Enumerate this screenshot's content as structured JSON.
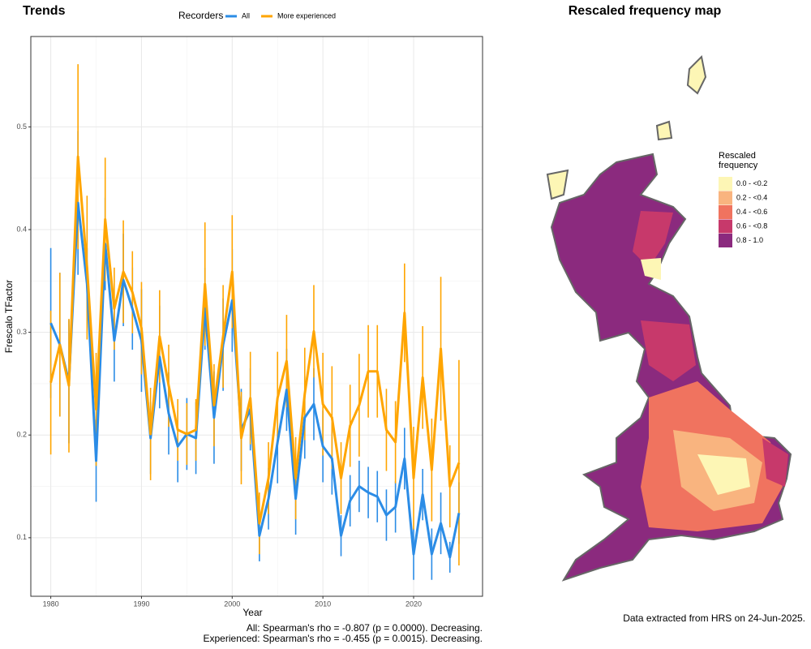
{
  "chart_data": [
    {
      "type": "line",
      "title": "Trends",
      "y_label": "Frescalo TFactor",
      "x_label": "Year",
      "legend_title": "Recorders",
      "x": [
        1980,
        1981,
        1982,
        1983,
        1984,
        1985,
        1986,
        1987,
        1988,
        1989,
        1990,
        1991,
        1992,
        1993,
        1994,
        1995,
        1996,
        1997,
        1998,
        1999,
        2000,
        2001,
        2002,
        2003,
        2004,
        2005,
        2006,
        2007,
        2008,
        2009,
        2010,
        2011,
        2012,
        2013,
        2014,
        2015,
        2016,
        2017,
        2018,
        2019,
        2020,
        2021,
        2022,
        2023,
        2024,
        2025
      ],
      "series": [
        {
          "name": "All",
          "color": "#2b8ce6",
          "values": [
            0.309,
            0.288,
            0.252,
            0.426,
            0.347,
            0.175,
            0.386,
            0.292,
            0.351,
            0.323,
            0.292,
            0.197,
            0.276,
            0.221,
            0.189,
            0.201,
            0.197,
            0.323,
            0.217,
            0.288,
            0.331,
            0.205,
            0.225,
            0.102,
            0.138,
            0.193,
            0.244,
            0.138,
            0.217,
            0.23,
            0.189,
            0.177,
            0.102,
            0.136,
            0.15,
            0.144,
            0.14,
            0.122,
            0.13,
            0.177,
            0.084,
            0.142,
            0.084,
            0.114,
            0.081,
            0.124
          ],
          "errors": [
            0.073,
            0.07,
            0.06,
            0.07,
            0.035,
            0.04,
            0.045,
            0.04,
            0.045,
            0.04,
            0.05,
            0.035,
            0.05,
            0.04,
            0.035,
            0.035,
            0.035,
            0.04,
            0.045,
            0.045,
            0.05,
            0.04,
            0.04,
            0.025,
            0.03,
            0.04,
            0.04,
            0.035,
            0.04,
            0.035,
            0.035,
            0.035,
            0.02,
            0.025,
            0.025,
            0.025,
            0.025,
            0.025,
            0.025,
            0.03,
            0.025,
            0.025,
            0.025,
            0.03,
            0.015,
            0.03
          ]
        },
        {
          "name": "More experienced",
          "color": "#ffa500",
          "values": [
            0.251,
            0.288,
            0.248,
            0.471,
            0.363,
            0.225,
            0.41,
            0.323,
            0.359,
            0.339,
            0.304,
            0.201,
            0.296,
            0.248,
            0.205,
            0.201,
            0.205,
            0.347,
            0.229,
            0.296,
            0.359,
            0.197,
            0.236,
            0.114,
            0.158,
            0.236,
            0.272,
            0.158,
            0.24,
            0.301,
            0.23,
            0.217,
            0.158,
            0.209,
            0.229,
            0.262,
            0.262,
            0.205,
            0.193,
            0.319,
            0.158,
            0.256,
            0.166,
            0.284,
            0.15,
            0.173
          ],
          "errors": [
            0.07,
            0.07,
            0.065,
            0.09,
            0.07,
            0.055,
            0.06,
            0.04,
            0.05,
            0.04,
            0.045,
            0.045,
            0.045,
            0.04,
            0.03,
            0.03,
            0.03,
            0.06,
            0.04,
            0.05,
            0.055,
            0.045,
            0.045,
            0.03,
            0.035,
            0.045,
            0.045,
            0.04,
            0.045,
            0.045,
            0.05,
            0.05,
            0.035,
            0.04,
            0.05,
            0.045,
            0.045,
            0.04,
            0.04,
            0.048,
            0.05,
            0.05,
            0.05,
            0.07,
            0.04,
            0.1
          ]
        }
      ],
      "xlim": [
        1977.8,
        2027.6
      ],
      "xticks": [
        1980,
        1990,
        2000,
        2010,
        2020
      ],
      "ylim": [
        0.043,
        0.588
      ],
      "yticks": [
        0.1,
        0.2,
        0.3,
        0.4,
        0.5
      ],
      "grid": true,
      "notes": [
        "All: Spearman's rho = -0.807 (p = 0.0000). Decreasing.",
        "Experienced: Spearman's rho = -0.455 (p = 0.0015). Decreasing."
      ]
    },
    {
      "type": "map",
      "title": "Rescaled frequency map",
      "legend_title": "Rescaled frequency",
      "legend": [
        {
          "label": "0.0 - <0.2",
          "color": "#fdf6b5"
        },
        {
          "label": "0.2 - <0.4",
          "color": "#f9b47f"
        },
        {
          "label": "0.4 - <0.6",
          "color": "#f0735f"
        },
        {
          "label": "0.6 - <0.8",
          "color": "#c7396b"
        },
        {
          "label": "0.8 - 1.0",
          "color": "#8b2a7e"
        }
      ],
      "caption": "Data extracted from HRS on 24-Jun-2025."
    }
  ]
}
